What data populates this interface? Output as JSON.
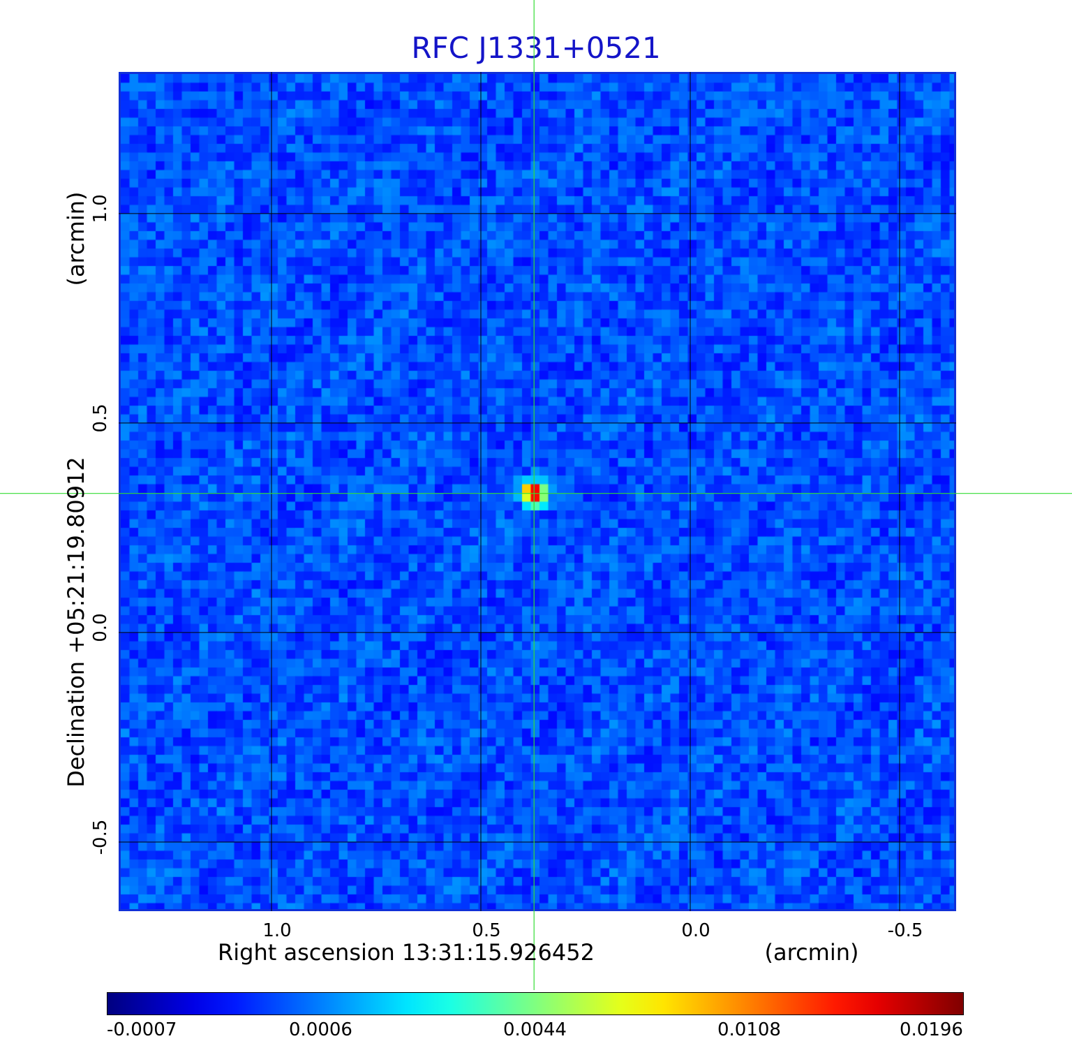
{
  "chart_data": {
    "type": "heatmap",
    "title": "RFC J1331+0521",
    "xlabel": "Right ascension  13:31:15.926452",
    "xunit": "(arcmin)",
    "ylabel": "Declination  +05:21:19.80912",
    "yunit": "(arcmin)",
    "x_ticks": [
      1.0,
      0.5,
      0.0,
      -0.5
    ],
    "x_tick_labels": [
      "1.0",
      "0.5",
      "0.0",
      "-0.5"
    ],
    "y_ticks": [
      1.0,
      0.5,
      0.0,
      -0.5
    ],
    "y_tick_labels": [
      "1.0",
      "0.5",
      "0.0",
      "-0.5"
    ],
    "xlim": [
      1.365,
      -0.635
    ],
    "ylim": [
      -0.665,
      1.338
    ],
    "grid": true,
    "crosshair": {
      "x": 0.373,
      "y": 0.332
    },
    "peak_position": {
      "x": 0.373,
      "y": 0.332
    },
    "colormap": "jet",
    "colorbar_ticks": [
      -0.0007,
      0.0006,
      0.0044,
      0.0108,
      0.0196
    ],
    "colorbar_tick_labels": [
      "-0.0007",
      "0.0006",
      "0.0044",
      "0.0108",
      "0.0196"
    ],
    "colorbar_range": [
      -0.0007,
      0.0196
    ],
    "colors": {
      "title": "#1414c8",
      "frame": "#1030d8",
      "crosshair": "#33dd33",
      "grid": "#000000"
    }
  }
}
